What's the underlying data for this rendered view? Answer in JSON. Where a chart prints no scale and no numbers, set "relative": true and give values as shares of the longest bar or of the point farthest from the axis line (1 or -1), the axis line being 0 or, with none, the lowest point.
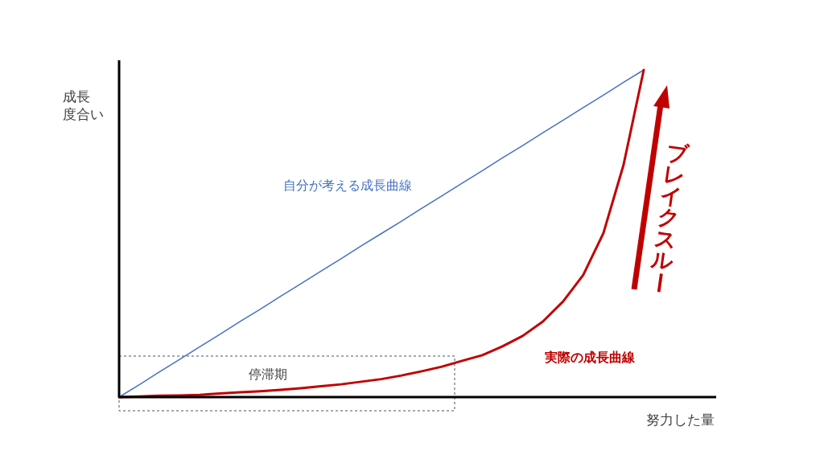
{
  "chart_data": {
    "type": "line",
    "relative": true,
    "xlabel": "努力した量",
    "ylabel": "成長度合い",
    "categories": [
      null,
      null,
      null,
      null,
      null,
      null,
      null,
      null,
      null,
      null,
      null,
      null,
      null,
      null,
      null,
      null,
      null,
      null,
      null,
      null,
      null,
      null,
      null,
      null,
      null,
      null,
      null
    ],
    "series": [
      {
        "name": "自分が考える成長曲線",
        "color": "#4472c4",
        "values": [
          0,
          0.038,
          0.077,
          0.115,
          0.154,
          0.192,
          0.231,
          0.269,
          0.308,
          0.346,
          0.385,
          0.423,
          0.462,
          0.5,
          0.538,
          0.577,
          0.615,
          0.654,
          0.692,
          0.731,
          0.769,
          0.808,
          0.846,
          0.885,
          0.923,
          0.962,
          1
        ]
      },
      {
        "name": "実際の成長曲線",
        "color": "#c00000",
        "values": [
          0,
          0.002,
          0.004,
          0.005,
          0.007,
          0.011,
          0.015,
          0.018,
          0.022,
          0.027,
          0.033,
          0.039,
          0.047,
          0.055,
          0.066,
          0.079,
          0.093,
          0.111,
          0.128,
          0.155,
          0.187,
          0.231,
          0.292,
          0.373,
          0.501,
          0.71,
          1
        ]
      }
    ],
    "annotations": [
      "停滞期",
      "ブレイクスルー"
    ]
  }
}
